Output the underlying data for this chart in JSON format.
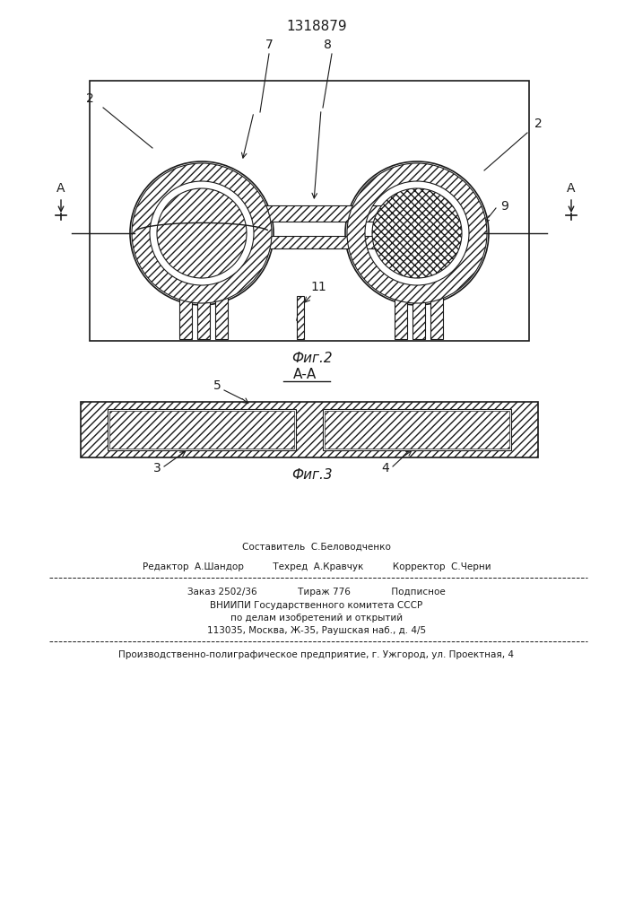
{
  "title": "1318879",
  "fig2_label": "Фиг.2",
  "fig3_label": "Фиг.3",
  "section_label": "А-А",
  "bg_color": "#f5f5f0",
  "line_color": "#1a1a1a",
  "hatch_color": "#1a1a1a",
  "label_color": "#1a1a1a",
  "footer_lines": [
    "Составитель С.Беловодченко",
    "Редактор А.Шандор         Техред А.Кравчук         Корректор С.Черни",
    "Заказ 2502/36              Тираж 776              Подписное",
    "ВНИИПИ Государственного комитета СССР",
    "по делам изобретений и открытий",
    "113035, Москва, Ж-35, Раушская наб., д. 4/5",
    "Производственно-полиграфическое предприятие, г. Ужгород, ул. Проектная, 4"
  ]
}
